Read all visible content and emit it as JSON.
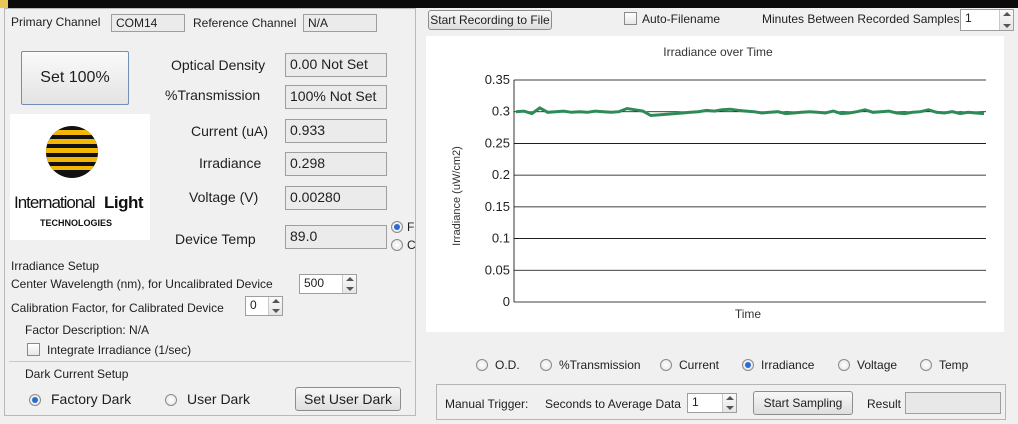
{
  "top": {
    "start_recording_label": "Start Recording to File",
    "auto_filename_label": "Auto-Filename",
    "auto_filename_checked": false,
    "minutes_label": "Minutes Between Recorded Samples",
    "minutes_value": "1"
  },
  "channels": {
    "primary_label": "Primary Channel",
    "primary_value": "COM14",
    "reference_label": "Reference Channel",
    "reference_value": "N/A"
  },
  "set100_label": "Set 100%",
  "readings": {
    "od_label": "Optical Density",
    "od_value": "0.00   Not Set",
    "trans_label": "%Transmission",
    "trans_value": "100% Not Set",
    "current_label": "Current (uA)",
    "current_value": "0.933",
    "irr_label": "Irradiance",
    "irr_value": "0.298",
    "voltage_label": "Voltage (V)",
    "voltage_value": "0.00280",
    "temp_label": "Device Temp",
    "temp_value": "89.0"
  },
  "temp_units": {
    "f_label": "F",
    "c_label": "C",
    "selected": "F"
  },
  "logo": {
    "word1": "International",
    "word2": "Light",
    "sub": "TECHNOLOGIES"
  },
  "irr_setup": {
    "title": "Irradiance Setup",
    "wavelength_label": "Center Wavelength (nm), for Uncalibrated Device",
    "wavelength_value": "500",
    "calib_label": "Calibration Factor, for Calibrated Device",
    "calib_value": "0",
    "factor_desc": "Factor Description:  N/A",
    "integrate_label": "Integrate Irradiance (1/sec)",
    "integrate_checked": false
  },
  "dark": {
    "title": "Dark Current Setup",
    "factory_label": "Factory Dark",
    "user_label": "User Dark",
    "selected": "Factory Dark",
    "set_user_dark_label": "Set User Dark"
  },
  "plot_select": {
    "options": [
      "O.D.",
      "%Transmission",
      "Current",
      "Irradiance",
      "Voltage",
      "Temp"
    ],
    "selected": "Irradiance"
  },
  "trigger": {
    "manual_label": "Manual Trigger:",
    "seconds_label": "Seconds to Average Data",
    "seconds_value": "1",
    "start_sampling_label": "Start Sampling",
    "result_label": "Result",
    "result_value": ""
  },
  "chart_data": {
    "type": "line",
    "title": "Irradiance over Time",
    "xlabel": "Time",
    "ylabel": "Irradiance (uW/cm2)",
    "ylim": [
      0,
      0.35
    ],
    "yticks": [
      "0",
      "0.05",
      "0.1",
      "0.15",
      "0.2",
      "0.25",
      "0.3",
      "0.35"
    ],
    "grid": "horizontal",
    "series_color": "#2e8b57",
    "series": [
      {
        "name": "",
        "x": [
          0,
          1,
          2,
          3,
          4,
          5,
          6,
          7,
          8,
          9,
          10,
          11,
          12,
          13,
          14,
          15,
          16,
          17,
          18,
          19,
          20,
          21,
          22,
          23,
          24,
          25,
          26,
          27,
          28,
          29,
          30,
          31,
          32,
          33,
          34,
          35,
          36,
          37,
          38,
          39,
          40,
          41,
          42,
          43,
          44,
          45,
          46,
          47,
          48,
          49,
          50,
          51,
          52,
          53,
          54,
          55,
          56,
          57,
          58,
          59
        ],
        "values": [
          0.3,
          0.301,
          0.297,
          0.306,
          0.299,
          0.3,
          0.301,
          0.299,
          0.3,
          0.299,
          0.301,
          0.3,
          0.299,
          0.3,
          0.305,
          0.303,
          0.301,
          0.294,
          0.295,
          0.296,
          0.297,
          0.298,
          0.299,
          0.3,
          0.302,
          0.301,
          0.303,
          0.304,
          0.302,
          0.301,
          0.3,
          0.298,
          0.299,
          0.3,
          0.297,
          0.298,
          0.299,
          0.3,
          0.299,
          0.298,
          0.301,
          0.297,
          0.298,
          0.3,
          0.303,
          0.299,
          0.3,
          0.301,
          0.298,
          0.297,
          0.299,
          0.3,
          0.303,
          0.299,
          0.298,
          0.3,
          0.297,
          0.299,
          0.298,
          0.297
        ]
      }
    ]
  },
  "colors": {
    "accent": "#2a6bd1",
    "line": "#2e8b57",
    "logo_yellow": "#f2b705"
  }
}
